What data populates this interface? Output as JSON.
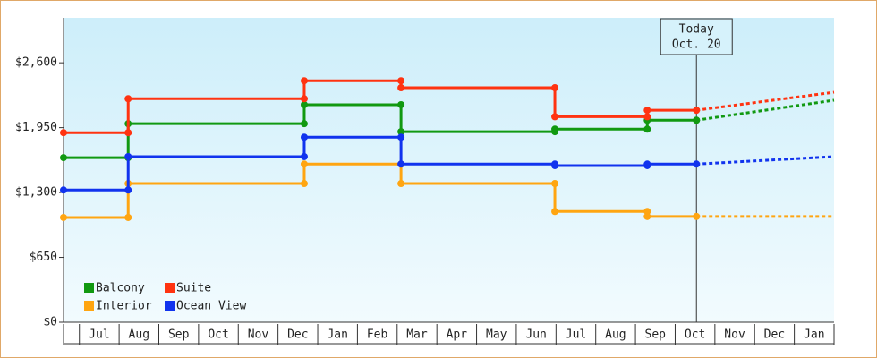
{
  "chart_data": {
    "type": "step-line",
    "categories": [
      null,
      "Jul",
      "Aug",
      "Sep",
      "Oct",
      "Nov",
      "Dec",
      "Jan",
      "Feb",
      "Mar",
      "Apr",
      "May",
      "Jun",
      "Jul",
      "Aug",
      "Sep",
      "Oct",
      "Nov",
      "Dec",
      "Jan"
    ],
    "xlim": [
      0,
      19.43
    ],
    "ylim": [
      0,
      3050
    ],
    "yticks": [
      {
        "value": 0,
        "label": "$0"
      },
      {
        "value": 650,
        "label": "$650"
      },
      {
        "value": 1300,
        "label": "$1,300"
      },
      {
        "value": 1950,
        "label": "$1,950"
      },
      {
        "value": 2600,
        "label": "$2,600"
      }
    ],
    "legend": "bottom-left",
    "annotation": {
      "lines": [
        "Today",
        "Oct. 20"
      ],
      "x": 15.96
    },
    "series": [
      {
        "name": "Balcony",
        "color": "#119911",
        "x": [
          0,
          1.63,
          1.63,
          6.07,
          6.07,
          8.51,
          8.51,
          12.39,
          12.39,
          14.72,
          14.72,
          15.96
        ],
        "values": [
          1650,
          1650,
          1990,
          1990,
          2180,
          2180,
          1910,
          1910,
          1935,
          1935,
          2025,
          2025
        ],
        "projection_x": [
          15.96,
          19.43
        ],
        "projection_values": [
          2025,
          2225
        ]
      },
      {
        "name": "Suite",
        "color": "#ff3311",
        "x": [
          0,
          1.63,
          1.63,
          6.07,
          6.07,
          8.51,
          8.51,
          12.39,
          12.39,
          14.72,
          14.72,
          15.96
        ],
        "values": [
          1900,
          1900,
          2240,
          2240,
          2420,
          2420,
          2350,
          2350,
          2060,
          2060,
          2125,
          2125
        ],
        "projection_x": [
          15.96,
          19.43
        ],
        "projection_values": [
          2125,
          2305
        ]
      },
      {
        "name": "Interior",
        "color": "#ffa511",
        "x": [
          0,
          1.63,
          1.63,
          6.07,
          6.07,
          8.51,
          8.51,
          12.39,
          12.39,
          14.72,
          14.72,
          15.96
        ],
        "values": [
          1050,
          1050,
          1390,
          1390,
          1585,
          1585,
          1390,
          1390,
          1110,
          1110,
          1060,
          1060
        ],
        "projection_x": [
          15.96,
          19.43
        ],
        "projection_values": [
          1060,
          1060
        ]
      },
      {
        "name": "Ocean View",
        "color": "#1133ee",
        "x": [
          0,
          1.63,
          1.63,
          6.07,
          6.07,
          8.51,
          8.51,
          12.39,
          12.39,
          14.72,
          14.72,
          15.96
        ],
        "values": [
          1325,
          1325,
          1660,
          1660,
          1855,
          1855,
          1585,
          1585,
          1570,
          1570,
          1585,
          1585
        ],
        "projection_x": [
          15.96,
          19.43
        ],
        "projection_values": [
          1585,
          1660
        ]
      }
    ]
  }
}
